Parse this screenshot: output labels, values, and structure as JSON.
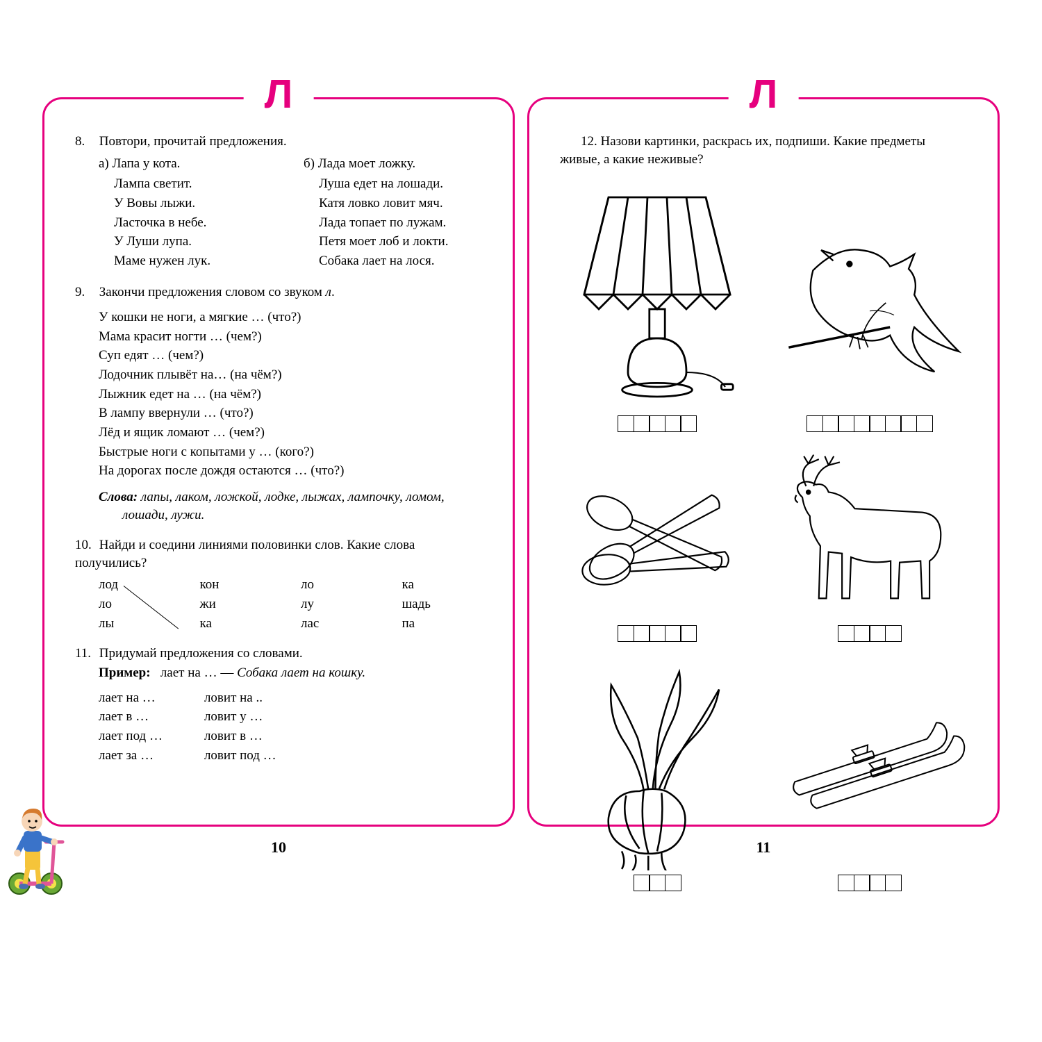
{
  "accent_color": "#e6007e",
  "letter": "Л",
  "left": {
    "page_number": "10",
    "ex8": {
      "num": "8.",
      "title": "Повтори, прочитай предложения.",
      "col_a_label": "а)",
      "col_a": [
        "Лапа у кота.",
        "Лампа светит.",
        "У Вовы лыжи.",
        "Ласточка в небе.",
        "У Луши лупа.",
        "Маме нужен лук."
      ],
      "col_b_label": "б)",
      "col_b": [
        "Лада моет ложку.",
        "Луша едет на лошади.",
        "Катя ловко ловит мяч.",
        "Лада топает по лужам.",
        "Петя моет лоб и локти.",
        "Собака лает на лося."
      ]
    },
    "ex9": {
      "num": "9.",
      "title": "Закончи предложения словом со звуком л.",
      "lines": [
        "У кошки не ноги, а мягкие … (что?)",
        "Мама красит ногти … (чем?)",
        "Суп едят … (чем?)",
        "Лодочник плывёт на… (на чём?)",
        "Лыжник едет на … (на чём?)",
        "В лампу ввернули … (что?)",
        "Лёд и ящик ломают … (чем?)",
        "Быстрые ноги с копытами у … (кого?)",
        "На дорогах после дождя остаются … (что?)"
      ],
      "words_label": "Слова:",
      "words": "лапы, лаком, ложкой, лодке, лыжах, лампочку, ломом, лошади, лужи."
    },
    "ex10": {
      "num": "10.",
      "title": "Найди и соедини линиями половинки слов. Какие слова получились?",
      "grid": [
        [
          "лод",
          "кон",
          "ло",
          "ка"
        ],
        [
          "ло",
          "жи",
          "лу",
          "шадь"
        ],
        [
          "лы",
          "ка",
          "лас",
          "па"
        ]
      ]
    },
    "ex11": {
      "num": "11.",
      "title": "Придумай предложения со словами.",
      "example_label": "Пример:",
      "example": "лает на … — Собака лает на кошку.",
      "col_a": [
        "лает на …",
        "лает в …",
        "лает под …",
        "лает за …"
      ],
      "col_b": [
        "ловит на ..",
        "ловит у …",
        "ловит в …",
        "ловит под …"
      ]
    }
  },
  "right": {
    "page_number": "11",
    "ex12": {
      "num": "12.",
      "title": "Назови картинки, раскрась их, подпиши. Какие предметы живые, а какие неживые?"
    },
    "items": [
      {
        "name": "lamp",
        "boxes": 5
      },
      {
        "name": "swallow",
        "boxes": 8
      },
      {
        "name": "spoons",
        "boxes": 5
      },
      {
        "name": "moose",
        "boxes": 4
      },
      {
        "name": "onion",
        "boxes": 3
      },
      {
        "name": "skis",
        "boxes": 4
      }
    ]
  },
  "scooter_colors": {
    "shirt": "#3a73c9",
    "pants": "#f5c43a",
    "hair": "#d57a2e",
    "wheel": "#6aa835",
    "frame": "#e05598",
    "skin": "#f7d6b8"
  }
}
